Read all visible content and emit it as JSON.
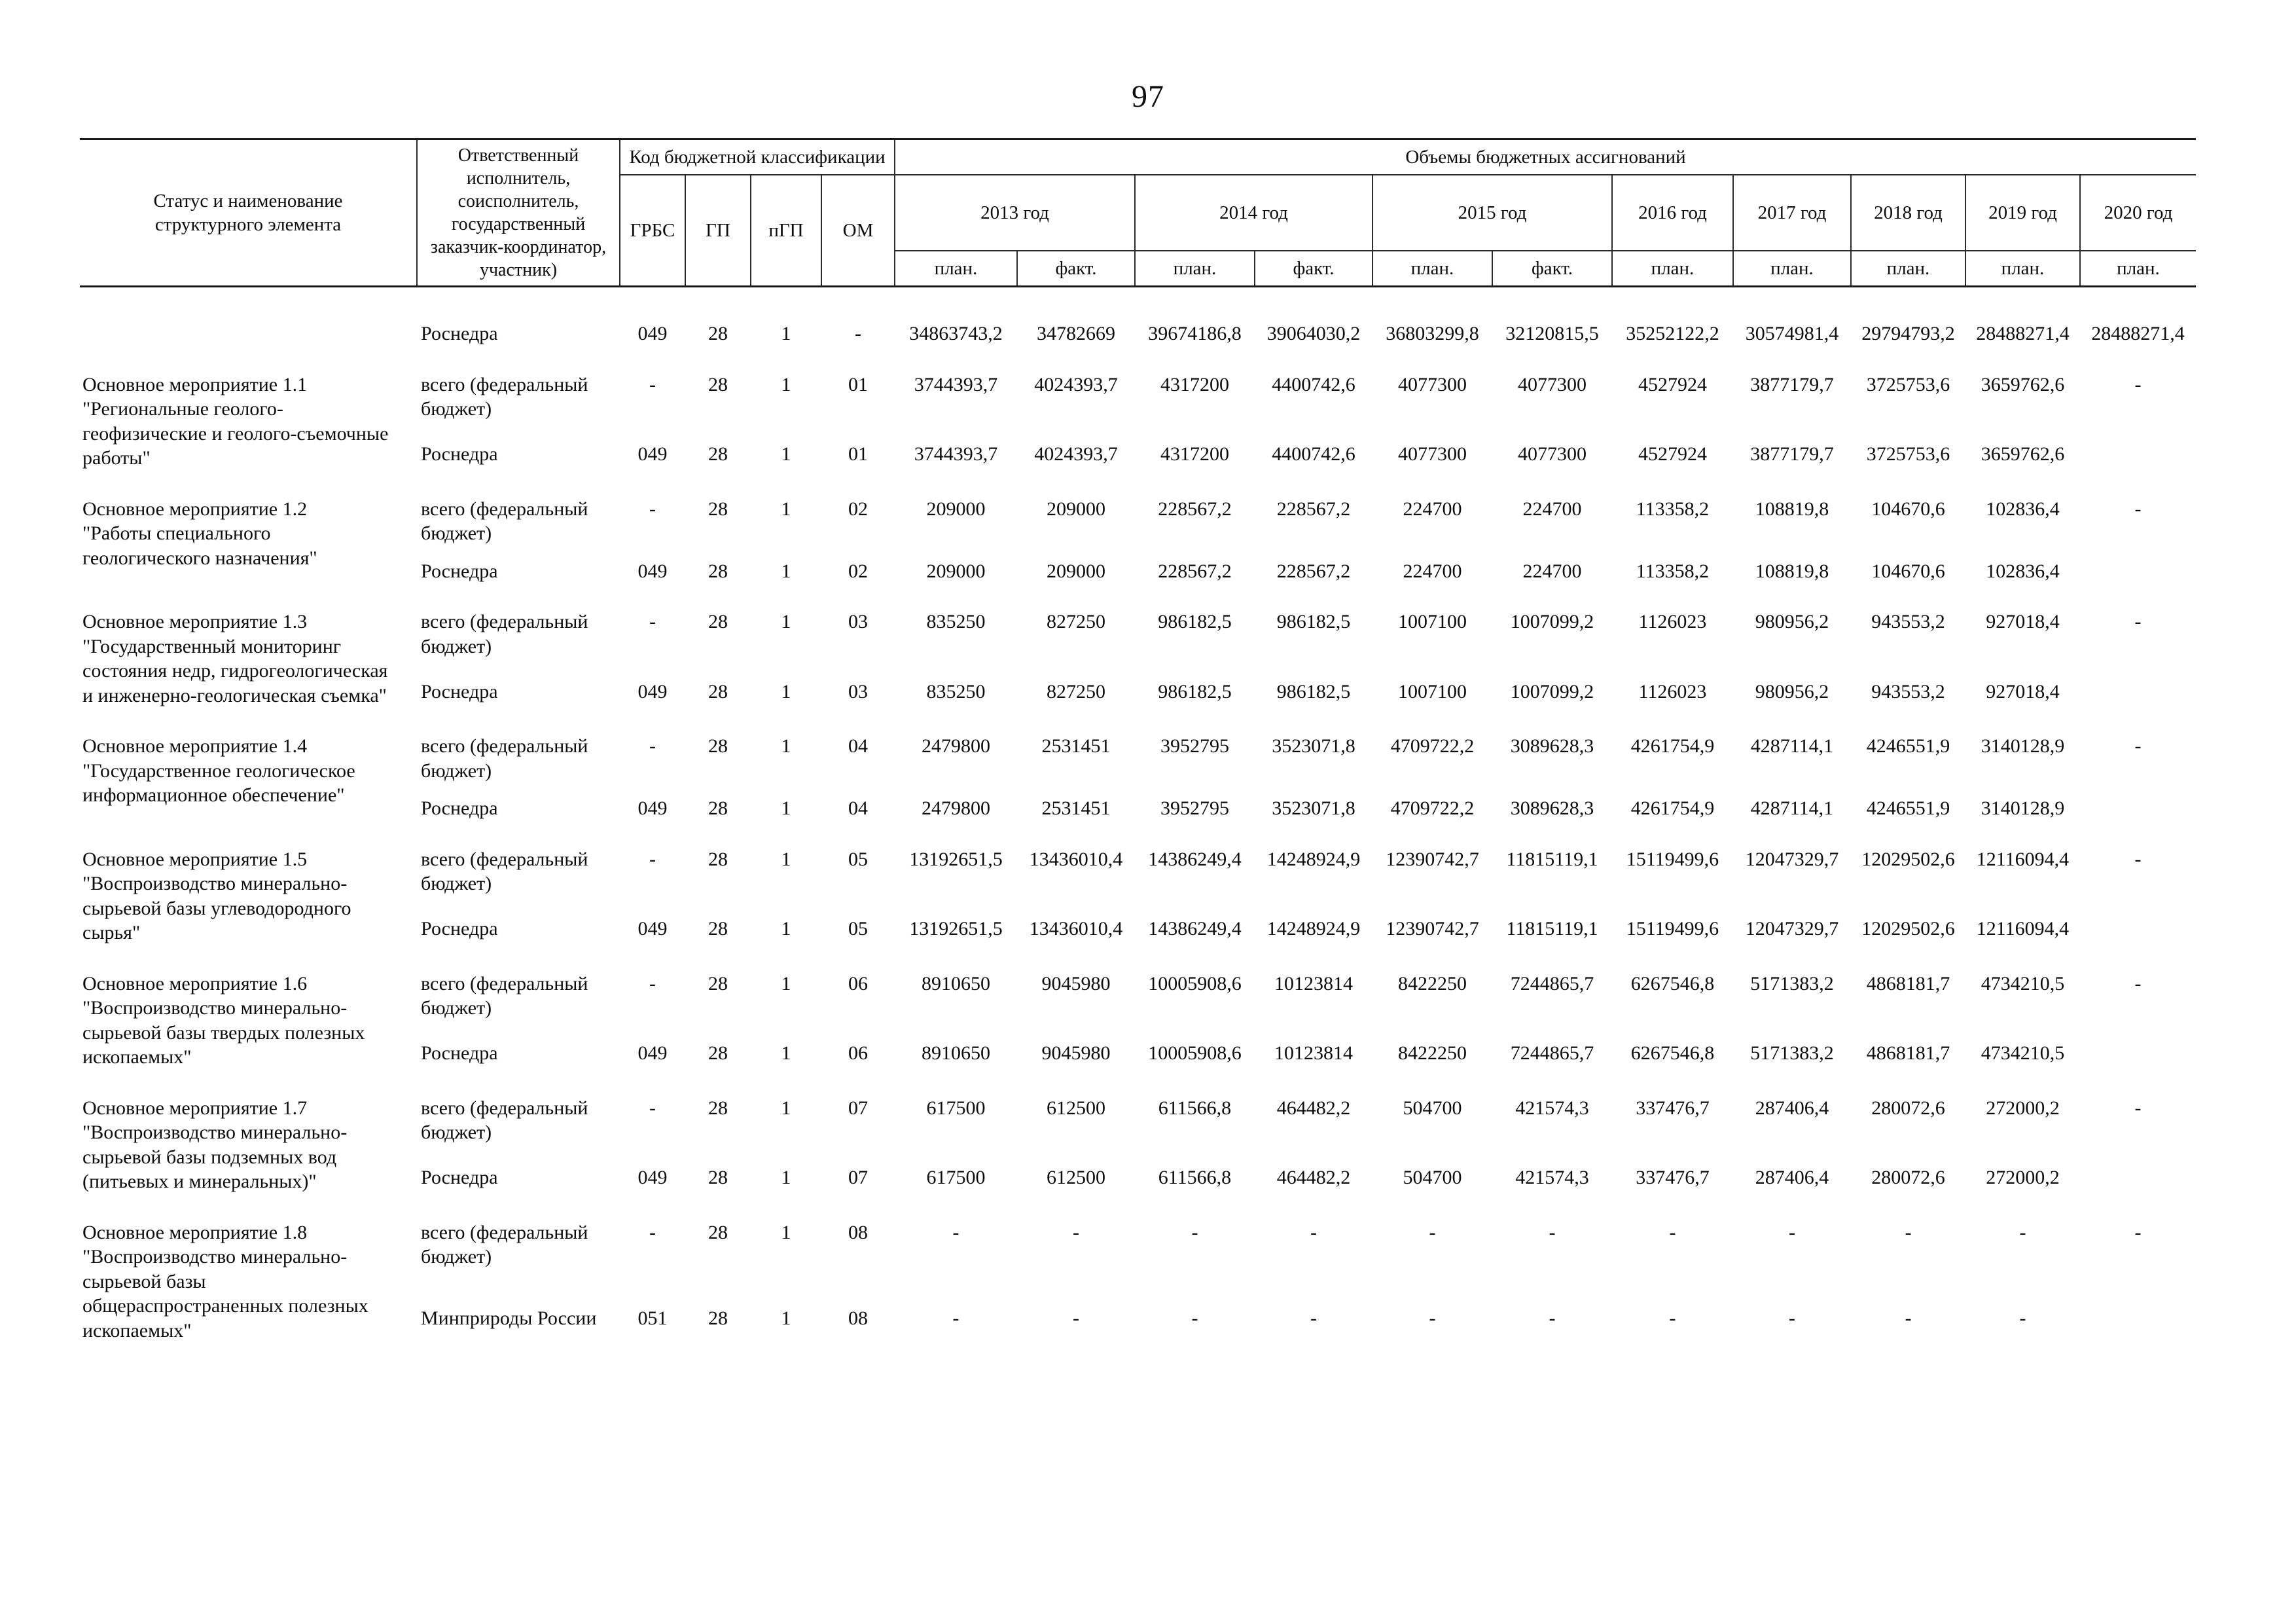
{
  "page": {
    "number": "97"
  },
  "table": {
    "header": {
      "status": "Статус и наименование структурного элемента",
      "executor": "Ответственный исполнитель, соисполнитель, государственный заказчик-координатор, участник)",
      "budget_code": "Код бюджетной классификации",
      "code_cols": [
        "ГРБС",
        "ГП",
        "пГП",
        "ОМ"
      ],
      "volumes": "Объемы бюджетных ассигнований",
      "years": [
        {
          "label": "2013 год",
          "subs": [
            "план.",
            "факт."
          ]
        },
        {
          "label": "2014 год",
          "subs": [
            "план.",
            "факт."
          ]
        },
        {
          "label": "2015 год",
          "subs": [
            "план.",
            "факт."
          ]
        },
        {
          "label": "2016 год",
          "subs": [
            "план."
          ]
        },
        {
          "label": "2017 год",
          "subs": [
            "план."
          ]
        },
        {
          "label": "2018 год",
          "subs": [
            "план."
          ]
        },
        {
          "label": "2019 год",
          "subs": [
            "план."
          ]
        },
        {
          "label": "2020 год",
          "subs": [
            "план."
          ]
        }
      ]
    },
    "groups": [
      {
        "label": "",
        "title": "",
        "rows": [
          {
            "executor": "Роснедра",
            "codes": [
              "049",
              "28",
              "1",
              "-"
            ],
            "values": [
              "34863743,2",
              "34782669",
              "39674186,8",
              "39064030,2",
              "36803299,8",
              "32120815,5",
              "35252122,2",
              "30574981,4",
              "29794793,2",
              "28488271,4",
              "28488271,4"
            ]
          }
        ]
      },
      {
        "label": "Основное мероприятие 1.1",
        "title": "\"Региональные геолого-геофизические и геолого-съемочные работы\"",
        "rows": [
          {
            "executor": "всего (федеральный бюджет)",
            "codes": [
              "-",
              "28",
              "1",
              "01"
            ],
            "values": [
              "3744393,7",
              "4024393,7",
              "4317200",
              "4400742,6",
              "4077300",
              "4077300",
              "4527924",
              "3877179,7",
              "3725753,6",
              "3659762,6",
              "-"
            ]
          },
          {
            "executor": "Роснедра",
            "codes": [
              "049",
              "28",
              "1",
              "01"
            ],
            "values": [
              "3744393,7",
              "4024393,7",
              "4317200",
              "4400742,6",
              "4077300",
              "4077300",
              "4527924",
              "3877179,7",
              "3725753,6",
              "3659762,6",
              ""
            ]
          }
        ]
      },
      {
        "label": "Основное мероприятие 1.2",
        "title": "\"Работы специального геологического назначения\"",
        "rows": [
          {
            "executor": "всего (федеральный бюджет)",
            "codes": [
              "-",
              "28",
              "1",
              "02"
            ],
            "values": [
              "209000",
              "209000",
              "228567,2",
              "228567,2",
              "224700",
              "224700",
              "113358,2",
              "108819,8",
              "104670,6",
              "102836,4",
              "-"
            ]
          },
          {
            "executor": "Роснедра",
            "codes": [
              "049",
              "28",
              "1",
              "02"
            ],
            "values": [
              "209000",
              "209000",
              "228567,2",
              "228567,2",
              "224700",
              "224700",
              "113358,2",
              "108819,8",
              "104670,6",
              "102836,4",
              ""
            ]
          }
        ]
      },
      {
        "label": "Основное мероприятие 1.3",
        "title": "\"Государственный мониторинг состояния недр, гидрогеологическая и инженерно-геологическая съемка\"",
        "rows": [
          {
            "executor": "всего (федеральный бюджет)",
            "codes": [
              "-",
              "28",
              "1",
              "03"
            ],
            "values": [
              "835250",
              "827250",
              "986182,5",
              "986182,5",
              "1007100",
              "1007099,2",
              "1126023",
              "980956,2",
              "943553,2",
              "927018,4",
              "-"
            ]
          },
          {
            "executor": "Роснедра",
            "codes": [
              "049",
              "28",
              "1",
              "03"
            ],
            "values": [
              "835250",
              "827250",
              "986182,5",
              "986182,5",
              "1007100",
              "1007099,2",
              "1126023",
              "980956,2",
              "943553,2",
              "927018,4",
              ""
            ]
          }
        ]
      },
      {
        "label": "Основное мероприятие 1.4",
        "title": "\"Государственное геологическое информационное обеспечение\"",
        "rows": [
          {
            "executor": "всего (федеральный бюджет)",
            "codes": [
              "-",
              "28",
              "1",
              "04"
            ],
            "values": [
              "2479800",
              "2531451",
              "3952795",
              "3523071,8",
              "4709722,2",
              "3089628,3",
              "4261754,9",
              "4287114,1",
              "4246551,9",
              "3140128,9",
              "-"
            ]
          },
          {
            "executor": "Роснедра",
            "codes": [
              "049",
              "28",
              "1",
              "04"
            ],
            "values": [
              "2479800",
              "2531451",
              "3952795",
              "3523071,8",
              "4709722,2",
              "3089628,3",
              "4261754,9",
              "4287114,1",
              "4246551,9",
              "3140128,9",
              ""
            ]
          }
        ]
      },
      {
        "label": "Основное мероприятие 1.5",
        "title": "\"Воспроизводство минерально-сырьевой базы углеводородного сырья\"",
        "rows": [
          {
            "executor": "всего (федеральный бюджет)",
            "codes": [
              "-",
              "28",
              "1",
              "05"
            ],
            "values": [
              "13192651,5",
              "13436010,4",
              "14386249,4",
              "14248924,9",
              "12390742,7",
              "11815119,1",
              "15119499,6",
              "12047329,7",
              "12029502,6",
              "12116094,4",
              "-"
            ]
          },
          {
            "executor": "Роснедра",
            "codes": [
              "049",
              "28",
              "1",
              "05"
            ],
            "values": [
              "13192651,5",
              "13436010,4",
              "14386249,4",
              "14248924,9",
              "12390742,7",
              "11815119,1",
              "15119499,6",
              "12047329,7",
              "12029502,6",
              "12116094,4",
              ""
            ]
          }
        ]
      },
      {
        "label": "Основное мероприятие 1.6",
        "title": "\"Воспроизводство минерально-сырьевой базы твердых полезных ископаемых\"",
        "rows": [
          {
            "executor": "всего (федеральный бюджет)",
            "codes": [
              "-",
              "28",
              "1",
              "06"
            ],
            "values": [
              "8910650",
              "9045980",
              "10005908,6",
              "10123814",
              "8422250",
              "7244865,7",
              "6267546,8",
              "5171383,2",
              "4868181,7",
              "4734210,5",
              "-"
            ]
          },
          {
            "executor": "Роснедра",
            "codes": [
              "049",
              "28",
              "1",
              "06"
            ],
            "values": [
              "8910650",
              "9045980",
              "10005908,6",
              "10123814",
              "8422250",
              "7244865,7",
              "6267546,8",
              "5171383,2",
              "4868181,7",
              "4734210,5",
              ""
            ]
          }
        ]
      },
      {
        "label": "Основное мероприятие 1.7",
        "title": "\"Воспроизводство минерально-сырьевой базы подземных вод (питьевых и минеральных)\"",
        "rows": [
          {
            "executor": "всего (федеральный бюджет)",
            "codes": [
              "-",
              "28",
              "1",
              "07"
            ],
            "values": [
              "617500",
              "612500",
              "611566,8",
              "464482,2",
              "504700",
              "421574,3",
              "337476,7",
              "287406,4",
              "280072,6",
              "272000,2",
              "-"
            ]
          },
          {
            "executor": "Роснедра",
            "codes": [
              "049",
              "28",
              "1",
              "07"
            ],
            "values": [
              "617500",
              "612500",
              "611566,8",
              "464482,2",
              "504700",
              "421574,3",
              "337476,7",
              "287406,4",
              "280072,6",
              "272000,2",
              ""
            ]
          }
        ]
      },
      {
        "label": "Основное мероприятие 1.8",
        "title": "\"Воспроизводство минерально-сырьевой базы общераспространенных полезных ископаемых\"",
        "rows": [
          {
            "executor": "всего (федеральный бюджет)",
            "codes": [
              "-",
              "28",
              "1",
              "08"
            ],
            "values": [
              "-",
              "-",
              "-",
              "-",
              "-",
              "-",
              "-",
              "-",
              "-",
              "-",
              "-"
            ]
          },
          {
            "executor": "Минприроды России",
            "codes": [
              "051",
              "28",
              "1",
              "08"
            ],
            "values": [
              "-",
              "-",
              "-",
              "-",
              "-",
              "-",
              "-",
              "-",
              "-",
              "-",
              ""
            ]
          }
        ]
      }
    ]
  }
}
